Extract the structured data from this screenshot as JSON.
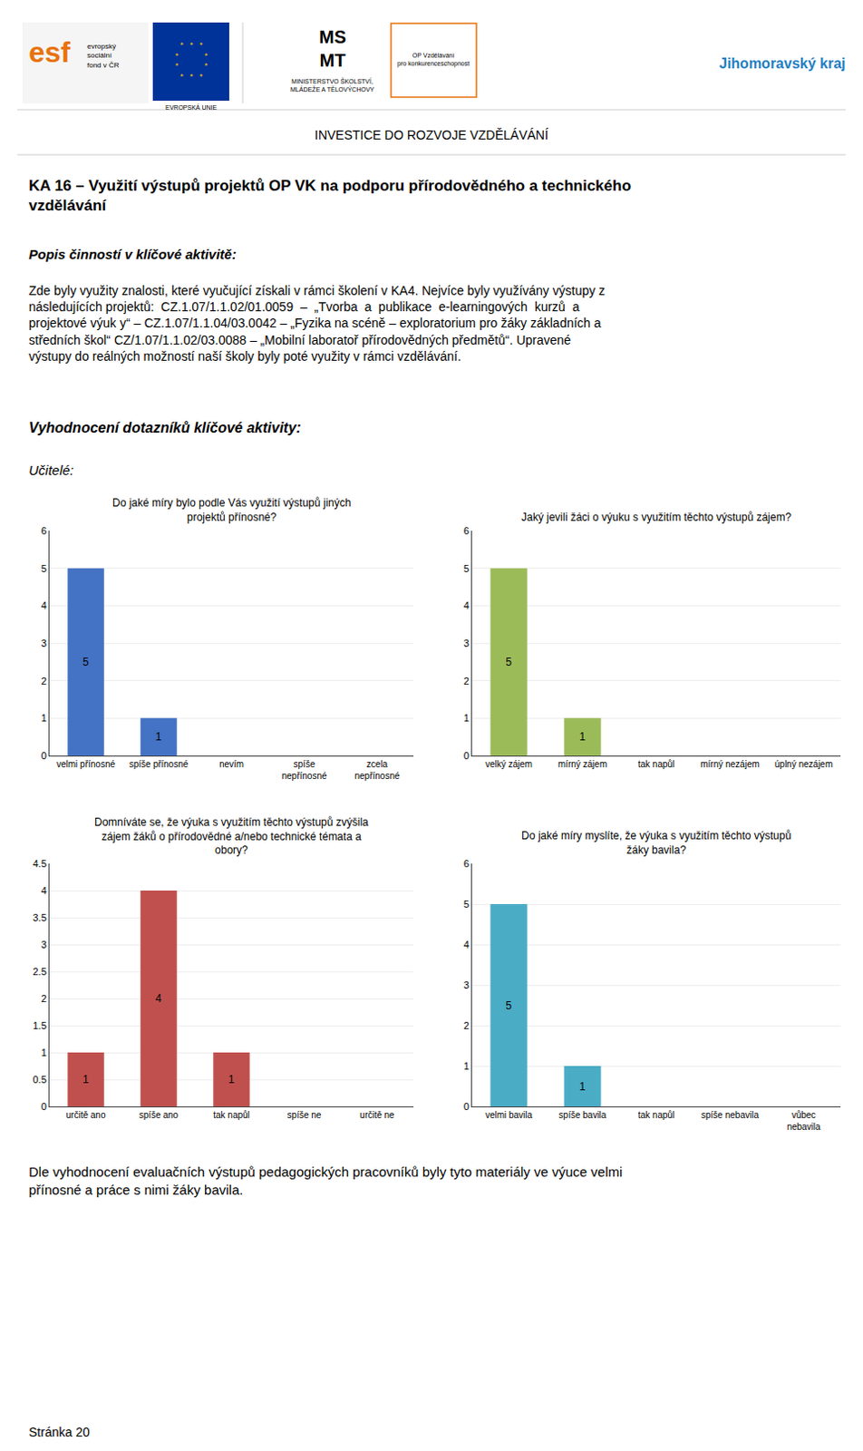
{
  "title": "KA 16 – Využití výstupů projektů OP VK na podporu přírodovědného a technického\nvzdělávání",
  "subtitle": "Popis činností v klíčové aktivitě:",
  "annotations": [
    "esf",
    "evropský\nsociální\nfond v ČR",
    "* * *\n*     *\n*     *\n* * *",
    "EVROPSKÁ UNIE",
    "MS\nMT",
    "MINISTERSTVO ŠKOLSTVÍ,\nMLÁDEŽE A TĚLOVÝCHOVY",
    "OP Vzdělávání\npro konkurenceschopnost",
    "Jihomoravský kraj",
    "INVESTICE DO ROZVOJE VZDĚLÁVÁNÍ",
    "Zde byly využity znalosti, které vyučující získali v rámci školení v KA4. Nejvíce byly využívány výstupy z\nnásledujících projektů:  CZ.1.07/1.1.02/01.0059  –  „Tvorba  a  publikace  e-learningových  kurzů  a\nprojektové výuk y“ – CZ.1.07/1.1.04/03.0042 – „Fyzika na scéně – exploratorium pro žáky základních a\nstředních škol“ CZ/1.07/1.1.02/03.0088 – „Mobilní laboratoř přírodovědných předmětů“. Upravené\nvýstupy do reálných možností naší školy byly poté využity v rámci vzdělávání.",
    "Vyhodnocení dotazníků klíčové aktivity:",
    "Učitelé:",
    "Dle vyhodnocení evaluačních výstupů pedagogických pracovníků byly tyto materiály ve výuce velmi\npřínosné a práce s nimi žáky bavila.",
    "Stránka 20"
  ],
  "chart_data": [
    {
      "type": "bar",
      "title": "Do jaké míry bylo podle Vás využití výstupů jiných\nprojektů přínosné?",
      "categories": [
        "velmi přínosné",
        "spíše přínosné",
        "nevím",
        "spíše\nnepřínosné",
        "zcela\nnepřínosné"
      ],
      "values": [
        5,
        1,
        0,
        0,
        0
      ],
      "color": "#4472C4",
      "ylim": [
        0,
        6
      ],
      "yticks": [
        0,
        1,
        2,
        3,
        4,
        5,
        6
      ],
      "grid": true,
      "data_labels": true
    },
    {
      "type": "bar",
      "title": "Jaký jevili žáci o výuku s využitím těchto výstupů zájem?",
      "categories": [
        "velký zájem",
        "mírný zájem",
        "tak napůl",
        "mírný nezájem",
        "úplný nezájem"
      ],
      "values": [
        5,
        1,
        0,
        0,
        0
      ],
      "color": "#9BBB59",
      "ylim": [
        0,
        6
      ],
      "yticks": [
        0,
        1,
        2,
        3,
        4,
        5,
        6
      ],
      "grid": true,
      "data_labels": true
    },
    {
      "type": "bar",
      "title": "Domníváte se, že výuka s využitím těchto výstupů zvýšila\nzájem žáků o přírodovědné a/nebo technické témata a\nobory?",
      "categories": [
        "určitě ano",
        "spíše ano",
        "tak napůl",
        "spíše ne",
        "určitě ne"
      ],
      "values": [
        1,
        4,
        1,
        0,
        0
      ],
      "color": "#C0504D",
      "ylim": [
        0,
        4.5
      ],
      "yticks": [
        0,
        0.5,
        1,
        1.5,
        2,
        2.5,
        3,
        3.5,
        4,
        4.5
      ],
      "grid": true,
      "data_labels": true
    },
    {
      "type": "bar",
      "title": "Do jaké míry myslíte, že výuka s využitím těchto výstupů\nžáky bavila?",
      "categories": [
        "velmi bavila",
        "spíše bavila",
        "tak napůl",
        "spíše nebavila",
        "vůbec\nnebavila"
      ],
      "values": [
        5,
        1,
        0,
        0,
        0
      ],
      "color": "#4BACC6",
      "ylim": [
        0,
        6
      ],
      "yticks": [
        0,
        1,
        2,
        3,
        4,
        5,
        6
      ],
      "grid": true,
      "data_labels": true
    }
  ]
}
